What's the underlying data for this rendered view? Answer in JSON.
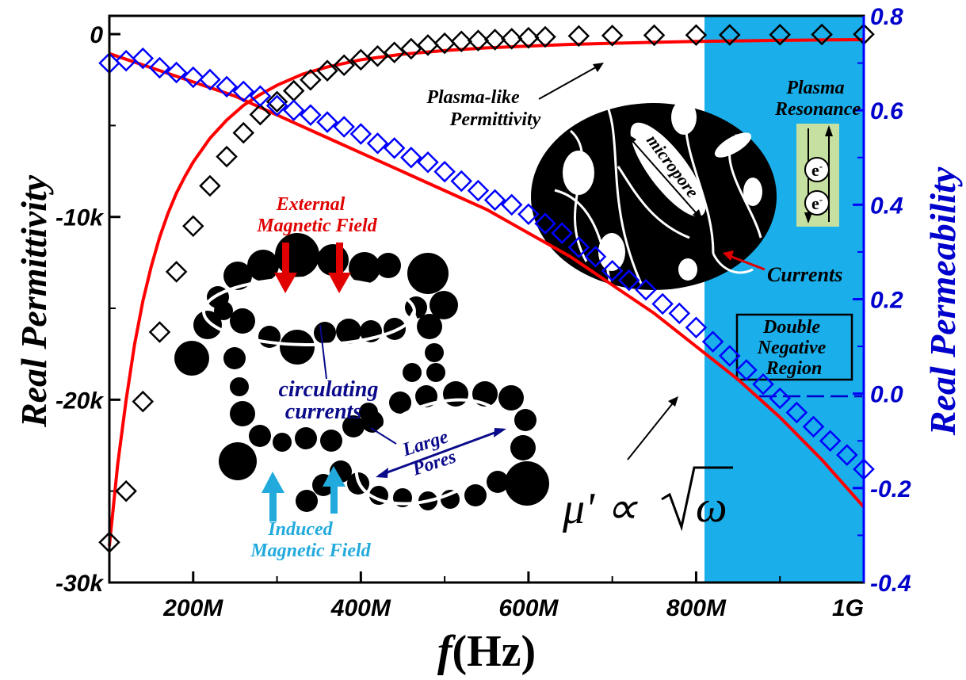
{
  "chart_data": {
    "type": "scatter",
    "xlabel_italic": "f",
    "xlabel_rest": "(Hz)",
    "ylabel_left": "Real   Permittivity",
    "ylabel_right": "Real   Permeability",
    "x_ticks": [
      {
        "value": 200,
        "label": "200M"
      },
      {
        "value": 400,
        "label": "400M"
      },
      {
        "value": 600,
        "label": "600M"
      },
      {
        "value": 800,
        "label": "800M"
      },
      {
        "value": 1000,
        "label": "1G"
      }
    ],
    "y_left_ticks": [
      {
        "value": 0,
        "label": "0"
      },
      {
        "value": -10000,
        "label": "-10k"
      },
      {
        "value": -20000,
        "label": "-20k"
      },
      {
        "value": -30000,
        "label": "-30k"
      }
    ],
    "y_right_ticks": [
      {
        "value": 0.8,
        "label": "0.8"
      },
      {
        "value": 0.6,
        "label": "0.6"
      },
      {
        "value": 0.4,
        "label": "0.4"
      },
      {
        "value": 0.2,
        "label": "0.2"
      },
      {
        "value": 0.0,
        "label": "0.0"
      },
      {
        "value": -0.2,
        "label": "-0.2"
      },
      {
        "value": -0.4,
        "label": "-0.4"
      }
    ],
    "xlim": [
      100,
      1000
    ],
    "ylim_left": [
      -30000,
      1000
    ],
    "ylim_right": [
      -0.4,
      0.8
    ],
    "shaded_region": {
      "x_from": 810,
      "x_to": 1000,
      "color": "#1aaeea"
    },
    "series": [
      {
        "axis": "left",
        "marker": "open-diamond",
        "color": "#000000",
        "x": [
          100,
          120,
          140,
          160,
          180,
          200,
          220,
          240,
          260,
          280,
          300,
          320,
          340,
          360,
          380,
          400,
          420,
          440,
          460,
          480,
          500,
          520,
          540,
          560,
          580,
          600,
          620,
          660,
          700,
          750,
          800,
          840,
          900,
          950,
          1000
        ],
        "y": [
          -27800,
          -25000,
          -20100,
          -16300,
          -13000,
          -10500,
          -8300,
          -6700,
          -5400,
          -4400,
          -3700,
          -3100,
          -2500,
          -2000,
          -1700,
          -1400,
          -1200,
          -1000,
          -800,
          -600,
          -500,
          -400,
          -350,
          -300,
          -250,
          -200,
          -150,
          -100,
          -80,
          -60,
          -50,
          -40,
          -30,
          -20,
          -10
        ]
      },
      {
        "axis": "right",
        "marker": "open-diamond",
        "color": "#0000ff",
        "x": [
          100,
          120,
          140,
          160,
          180,
          200,
          220,
          240,
          260,
          280,
          300,
          320,
          340,
          360,
          380,
          400,
          420,
          440,
          460,
          480,
          500,
          520,
          540,
          560,
          580,
          600,
          620,
          640,
          660,
          680,
          700,
          720,
          740,
          760,
          780,
          800,
          820,
          840,
          860,
          880,
          900,
          920,
          940,
          960,
          980,
          1000
        ],
        "y": [
          0.7,
          0.705,
          0.71,
          0.69,
          0.68,
          0.67,
          0.665,
          0.65,
          0.64,
          0.63,
          0.61,
          0.6,
          0.59,
          0.575,
          0.565,
          0.55,
          0.53,
          0.52,
          0.5,
          0.49,
          0.47,
          0.45,
          0.43,
          0.41,
          0.4,
          0.38,
          0.36,
          0.34,
          0.31,
          0.29,
          0.26,
          0.24,
          0.22,
          0.19,
          0.17,
          0.14,
          0.11,
          0.08,
          0.05,
          0.02,
          -0.01,
          -0.04,
          -0.07,
          -0.1,
          -0.13,
          -0.16
        ]
      }
    ],
    "fit_curves": [
      {
        "axis": "left",
        "color": "#ff0000",
        "x": [
          100,
          110,
          120,
          130,
          140,
          150,
          160,
          170,
          180,
          190,
          200,
          220,
          240,
          260,
          280,
          300,
          330,
          360,
          400,
          450,
          500,
          550,
          600,
          650,
          700,
          750,
          800,
          850,
          900,
          950,
          1000
        ],
        "y": [
          -28000,
          -23500,
          -20000,
          -17000,
          -14600,
          -12700,
          -11100,
          -9800,
          -8700,
          -7800,
          -7000,
          -5700,
          -4700,
          -3900,
          -3300,
          -2800,
          -2200,
          -1800,
          -1400,
          -1100,
          -900,
          -750,
          -650,
          -560,
          -500,
          -450,
          -400,
          -370,
          -340,
          -320,
          -300
        ]
      },
      {
        "axis": "right",
        "color": "#ff0000",
        "x": [
          100,
          150,
          200,
          250,
          300,
          350,
          400,
          450,
          500,
          550,
          600,
          650,
          700,
          750,
          800,
          850,
          900,
          950,
          1000
        ],
        "y": [
          0.72,
          0.69,
          0.66,
          0.63,
          0.59,
          0.55,
          0.51,
          0.47,
          0.43,
          0.39,
          0.34,
          0.29,
          0.23,
          0.17,
          0.1,
          0.03,
          -0.05,
          -0.14,
          -0.24
        ]
      }
    ]
  },
  "annotations": {
    "plasma_like": [
      "Plasma-like",
      "Permittivity"
    ],
    "plasma_resonance": [
      "Plasma",
      "Resonance"
    ],
    "micropore": "micropore",
    "electron": "e",
    "electron_sup": "-",
    "currents": "Currents",
    "double_negative": [
      "Double",
      "Negative",
      "Region"
    ],
    "external_field": [
      "External",
      "Magnetic Field"
    ],
    "circulating": [
      "circulating",
      "currents"
    ],
    "large_pores": [
      "Large",
      "Pores"
    ],
    "induced_field": [
      "Induced",
      "Magnetic Field"
    ],
    "mu_prefix": "μ' ∝",
    "mu_root": "ω"
  }
}
